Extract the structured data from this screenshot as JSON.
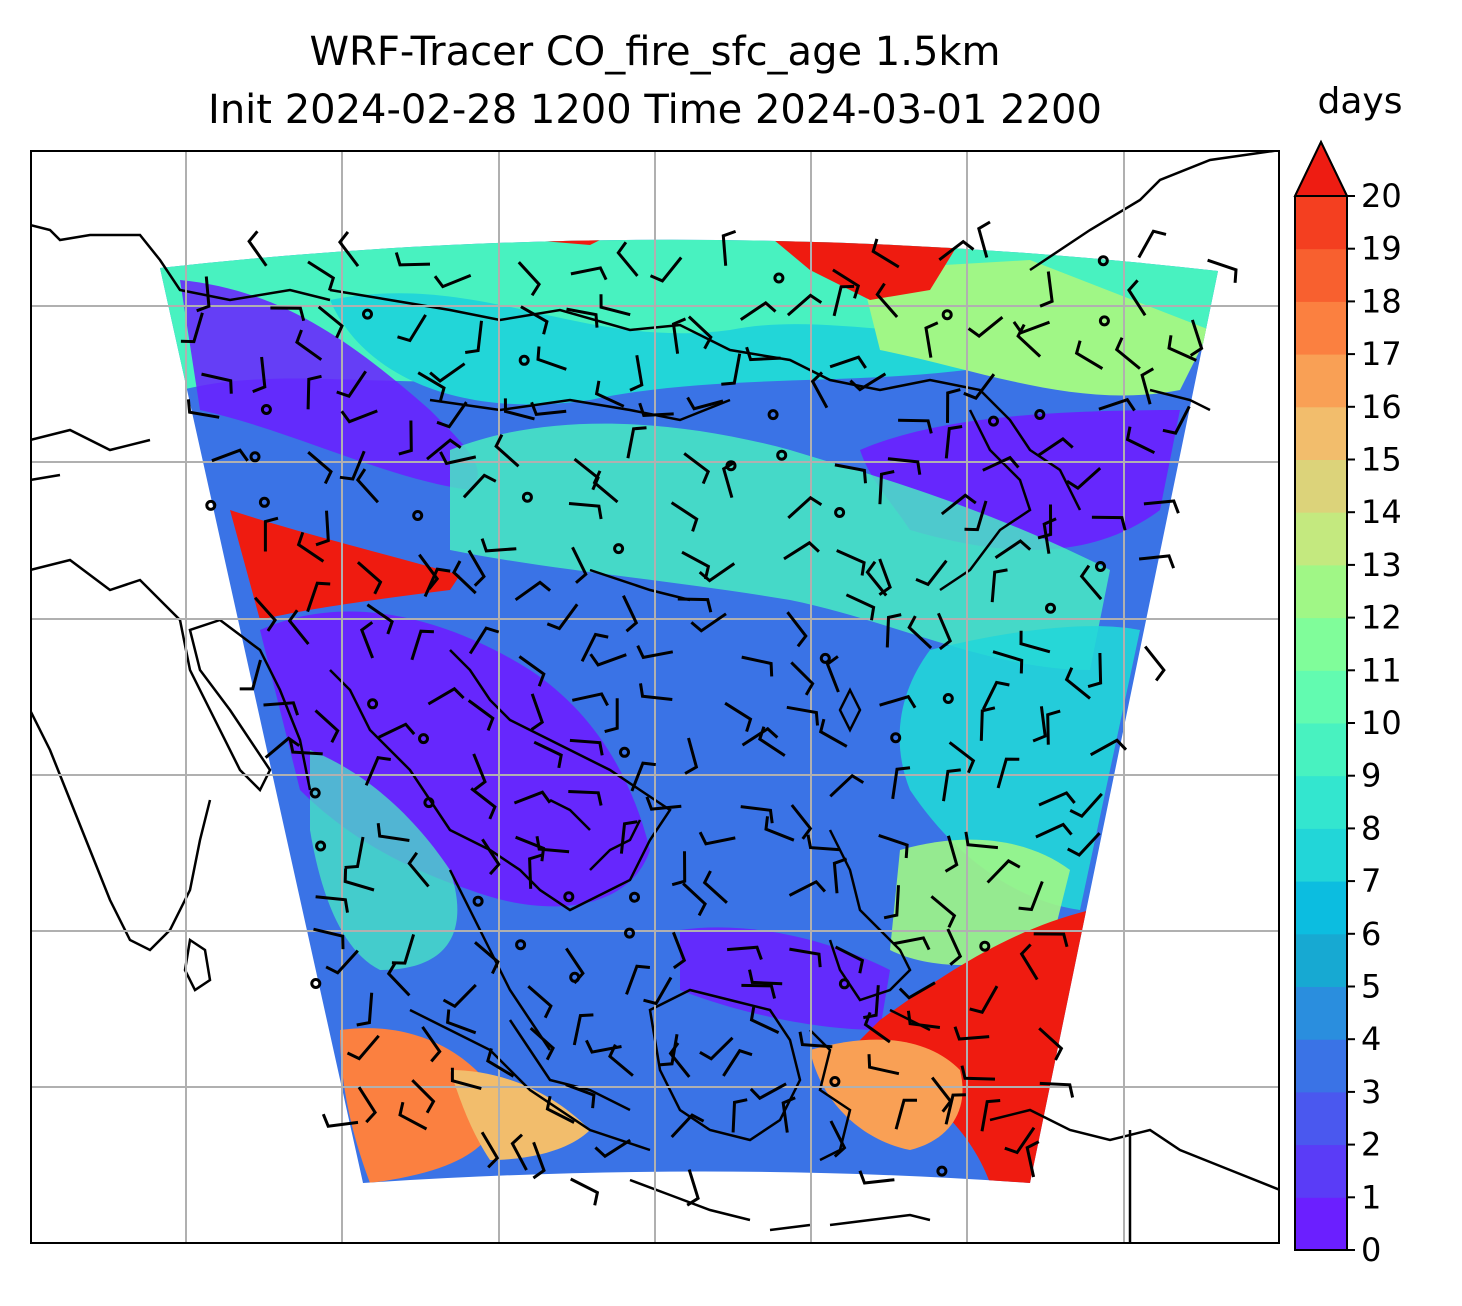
{
  "title": {
    "line1": "WRF-Tracer CO_fire_sfc_age 1.5km",
    "line2": "Init 2024-02-28 1200 Time 2024-03-01 2200"
  },
  "colorbar": {
    "units": "days",
    "ticks": [
      "0",
      "1",
      "2",
      "3",
      "4",
      "5",
      "6",
      "7",
      "8",
      "9",
      "10",
      "11",
      "12",
      "13",
      "14",
      "15",
      "16",
      "17",
      "18",
      "19",
      "20"
    ],
    "extend": "max",
    "colors": [
      "#6b1fff",
      "#5a3cf7",
      "#4a58ef",
      "#3a73e6",
      "#2a8ede",
      "#17a9d2",
      "#0cbde0",
      "#22d6d8",
      "#33e6cf",
      "#48f2c0",
      "#62fbb0",
      "#80fd9a",
      "#a0f786",
      "#c4e97f",
      "#dcd37a",
      "#f2bd6c",
      "#f9a055",
      "#fb8040",
      "#f8602f",
      "#f43f20",
      "#ef1b10"
    ],
    "over_color": "#ee1c12"
  },
  "map": {
    "background": "#ffffff",
    "gridline_color": "#b0b0b0",
    "coastline_color": "#000000",
    "field_name": "CO_fire_sfc_age",
    "domain_colors": {
      "deep_purple": "#6b1fff",
      "blue": "#3a73e6",
      "cyan": "#22d6d8",
      "aqua": "#48f2c0",
      "light_green": "#a0f786",
      "orange": "#fb8040",
      "red": "#ef1b10"
    }
  }
}
